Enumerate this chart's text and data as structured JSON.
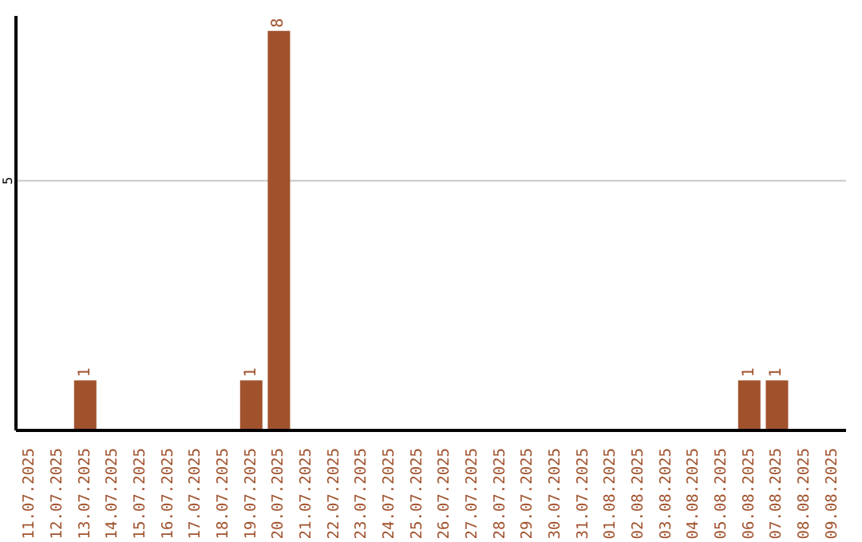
{
  "chart_data": {
    "type": "bar",
    "categories": [
      "11.07.2025",
      "12.07.2025",
      "13.07.2025",
      "14.07.2025",
      "15.07.2025",
      "16.07.2025",
      "17.07.2025",
      "18.07.2025",
      "19.07.2025",
      "20.07.2025",
      "21.07.2025",
      "22.07.2025",
      "23.07.2025",
      "24.07.2025",
      "25.07.2025",
      "26.07.2025",
      "27.07.2025",
      "28.07.2025",
      "29.07.2025",
      "30.07.2025",
      "31.07.2025",
      "01.08.2025",
      "02.08.2025",
      "03.08.2025",
      "04.08.2025",
      "05.08.2025",
      "06.08.2025",
      "07.08.2025",
      "08.08.2025",
      "09.08.2025"
    ],
    "values": [
      0,
      0,
      1,
      0,
      0,
      0,
      0,
      0,
      1,
      8,
      0,
      0,
      0,
      0,
      0,
      0,
      0,
      0,
      0,
      0,
      0,
      0,
      0,
      0,
      0,
      0,
      1,
      1,
      0,
      0
    ],
    "value_labels": [
      null,
      null,
      "1",
      null,
      null,
      null,
      null,
      null,
      "1",
      "8",
      null,
      null,
      null,
      null,
      null,
      null,
      null,
      null,
      null,
      null,
      null,
      null,
      null,
      null,
      null,
      null,
      "1",
      "1",
      null,
      null
    ],
    "color": "#a0522d",
    "ylim": [
      0,
      8.3
    ],
    "yticks": [
      5
    ],
    "grid": "y"
  }
}
